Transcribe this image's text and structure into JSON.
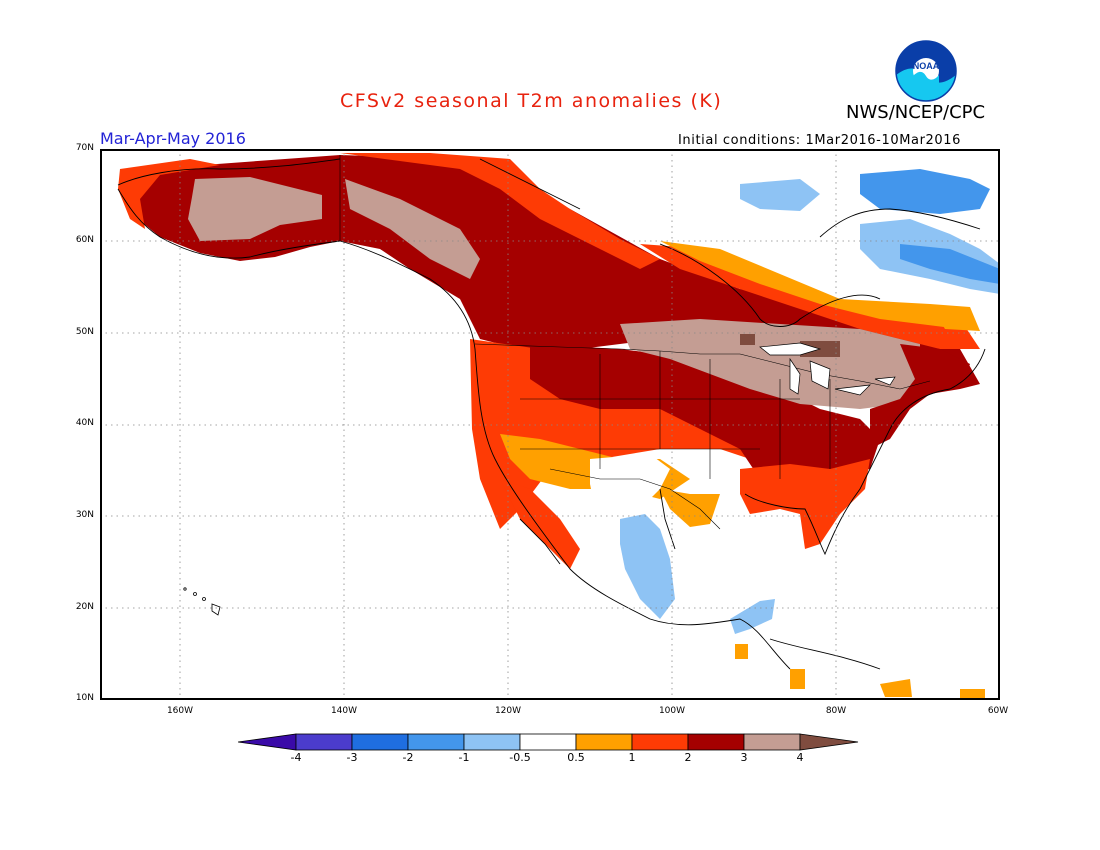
{
  "title": "CFSv2 seasonal T2m anomalies (K)",
  "agency": "NWS/NCEP/CPC",
  "logo_text": "NOAA",
  "season_label": "Mar-Apr-May 2016",
  "initial_conditions": "Initial conditions: 1Mar2016-10Mar2016",
  "map": {
    "lat_labels": [
      "70N",
      "60N",
      "50N",
      "40N",
      "30N",
      "20N",
      "10N"
    ],
    "lon_labels": [
      "160W",
      "140W",
      "120W",
      "100W",
      "80W",
      "60W"
    ],
    "region": "North America",
    "grid": "dotted",
    "lat_range": [
      10,
      70
    ],
    "lon_range": [
      -172,
      -60
    ]
  },
  "colorbar": {
    "tick_labels": [
      "-4",
      "-3",
      "-2",
      "-1",
      "-0.5",
      "0.5",
      "1",
      "2",
      "3",
      "4"
    ],
    "colors": [
      "#3a0aa8",
      "#4b3ccc",
      "#1f6ee0",
      "#4396ec",
      "#8ec3f4",
      "#ffffff",
      "#ffa000",
      "#fe3b05",
      "#a50000",
      "#c49d93",
      "#7f4c3f"
    ]
  },
  "colors": {
    "title": "#e8220e",
    "season": "#2323d6"
  }
}
